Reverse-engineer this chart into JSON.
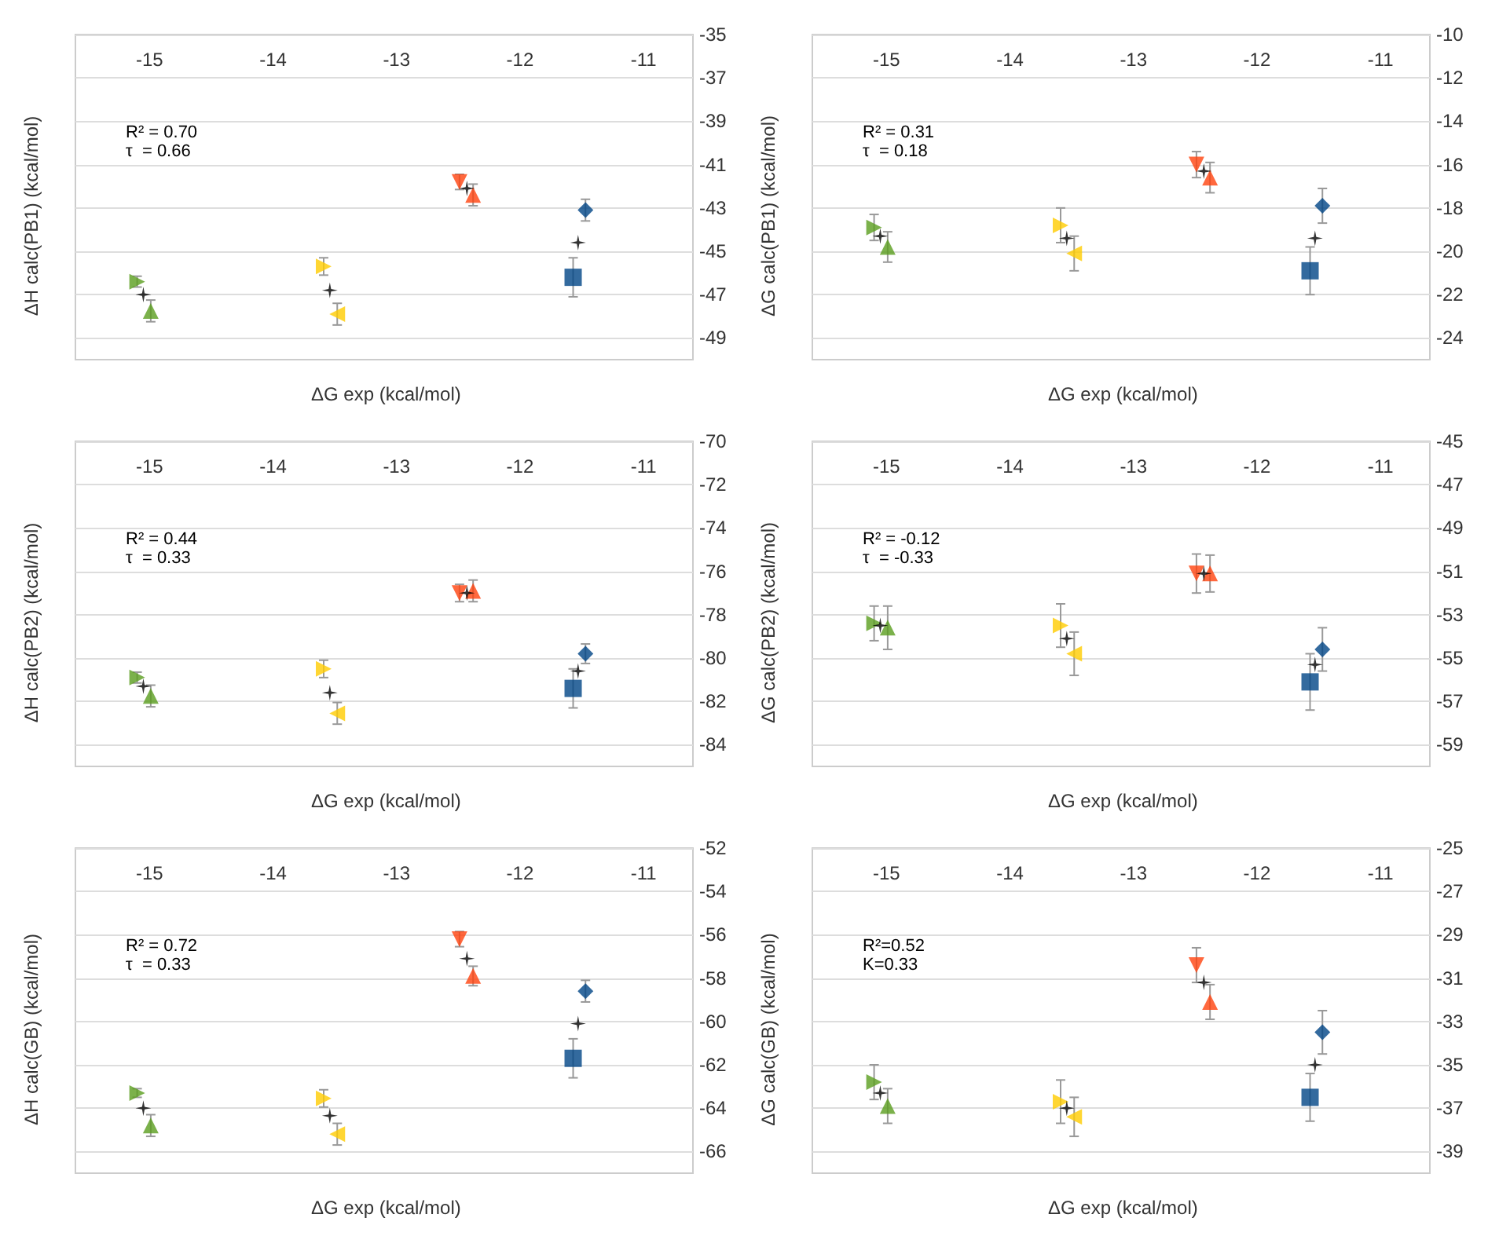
{
  "chart_data": [
    {
      "type": "scatter",
      "ylabel": "ΔH calc(PB1) (kcal/mol)",
      "xlabel": "ΔG exp (kcal/mol)",
      "xlim": [
        -15.6,
        -10.6
      ],
      "xticks": [
        -15,
        -14,
        -13,
        -12,
        -11
      ],
      "ylim": [
        -50,
        -35
      ],
      "yticks": [
        -35,
        -37,
        -39,
        -41,
        -43,
        -45,
        -47,
        -49
      ],
      "grid": "y",
      "annotations": [
        "R² = 0.70",
        "τ  = 0.66"
      ],
      "series": [
        {
          "x": [
            -15.1
          ],
          "values": [
            -46.4
          ],
          "errors": [
            0.25
          ],
          "color": "#5a9e1e",
          "marker": "triangle-right"
        },
        {
          "x": [
            -14.99
          ],
          "values": [
            -47.75
          ],
          "errors": [
            0.5
          ],
          "color": "#5a9e1e",
          "marker": "triangle"
        },
        {
          "x": [
            -13.59
          ],
          "values": [
            -45.7
          ],
          "errors": [
            0.4
          ],
          "color": "#ffcc00",
          "marker": "triangle-right"
        },
        {
          "x": [
            -13.48
          ],
          "values": [
            -47.9
          ],
          "errors": [
            0.5
          ],
          "color": "#ffcc00",
          "marker": "triangle-left"
        },
        {
          "x": [
            -12.49
          ],
          "values": [
            -41.8
          ],
          "errors": [
            0.35
          ],
          "color": "#ff420e",
          "marker": "triangle-down"
        },
        {
          "x": [
            -12.38
          ],
          "values": [
            -42.4
          ],
          "errors": [
            0.5
          ],
          "color": "#ff420e",
          "marker": "triangle"
        },
        {
          "x": [
            -11.57
          ],
          "values": [
            -46.2
          ],
          "errors": [
            0.9
          ],
          "color": "#004586",
          "marker": "square"
        },
        {
          "x": [
            -11.47
          ],
          "values": [
            -43.1
          ],
          "errors": [
            0.5
          ],
          "color": "#004586",
          "marker": "diamond"
        },
        {
          "x": [
            -15.05,
            -13.54,
            -12.43,
            -11.53
          ],
          "values": [
            -47.0,
            -46.8,
            -42.1,
            -44.6
          ],
          "color": "#000000",
          "marker": "cross"
        }
      ]
    },
    {
      "type": "scatter",
      "ylabel": "ΔG calc(PB1) (kcal/mol)",
      "xlabel": "ΔG exp (kcal/mol)",
      "xlim": [
        -15.6,
        -10.6
      ],
      "xticks": [
        -15,
        -14,
        -13,
        -12,
        -11
      ],
      "ylim": [
        -25,
        -10
      ],
      "yticks": [
        -10,
        -12,
        -14,
        -16,
        -18,
        -20,
        -22,
        -24
      ],
      "grid": "y",
      "annotations": [
        "R² = 0.31",
        "τ  = 0.18"
      ],
      "series": [
        {
          "x": [
            -15.1
          ],
          "values": [
            -18.9
          ],
          "errors": [
            0.6
          ],
          "color": "#5a9e1e",
          "marker": "triangle-right"
        },
        {
          "x": [
            -14.99
          ],
          "values": [
            -19.8
          ],
          "errors": [
            0.7
          ],
          "color": "#5a9e1e",
          "marker": "triangle"
        },
        {
          "x": [
            -13.59
          ],
          "values": [
            -18.8
          ],
          "errors": [
            0.8
          ],
          "color": "#ffcc00",
          "marker": "triangle-right"
        },
        {
          "x": [
            -13.48
          ],
          "values": [
            -20.1
          ],
          "errors": [
            0.8
          ],
          "color": "#ffcc00",
          "marker": "triangle-left"
        },
        {
          "x": [
            -12.49
          ],
          "values": [
            -16.0
          ],
          "errors": [
            0.6
          ],
          "color": "#ff420e",
          "marker": "triangle-down"
        },
        {
          "x": [
            -12.38
          ],
          "values": [
            -16.6
          ],
          "errors": [
            0.7
          ],
          "color": "#ff420e",
          "marker": "triangle"
        },
        {
          "x": [
            -11.57
          ],
          "values": [
            -20.9
          ],
          "errors": [
            1.1
          ],
          "color": "#004586",
          "marker": "square"
        },
        {
          "x": [
            -11.47
          ],
          "values": [
            -17.9
          ],
          "errors": [
            0.8
          ],
          "color": "#004586",
          "marker": "diamond"
        },
        {
          "x": [
            -15.05,
            -13.54,
            -12.43,
            -11.53
          ],
          "values": [
            -19.3,
            -19.4,
            -16.3,
            -19.4
          ],
          "color": "#000000",
          "marker": "cross"
        }
      ]
    },
    {
      "type": "scatter",
      "ylabel": "ΔH calc(PB2) (kcal/mol)",
      "xlabel": "ΔG exp (kcal/mol)",
      "xlim": [
        -15.6,
        -10.6
      ],
      "xticks": [
        -15,
        -14,
        -13,
        -12,
        -11
      ],
      "ylim": [
        -85,
        -70
      ],
      "yticks": [
        -70,
        -72,
        -74,
        -76,
        -78,
        -80,
        -82,
        -84
      ],
      "grid": "y",
      "annotations": [
        "R² = 0.44",
        "τ  = 0.33"
      ],
      "series": [
        {
          "x": [
            -15.1
          ],
          "values": [
            -80.9
          ],
          "errors": [
            0.25
          ],
          "color": "#5a9e1e",
          "marker": "triangle-right"
        },
        {
          "x": [
            -14.99
          ],
          "values": [
            -81.75
          ],
          "errors": [
            0.5
          ],
          "color": "#5a9e1e",
          "marker": "triangle"
        },
        {
          "x": [
            -13.59
          ],
          "values": [
            -80.5
          ],
          "errors": [
            0.4
          ],
          "color": "#ffcc00",
          "marker": "triangle-right"
        },
        {
          "x": [
            -13.48
          ],
          "values": [
            -82.55
          ],
          "errors": [
            0.5
          ],
          "color": "#ffcc00",
          "marker": "triangle-left"
        },
        {
          "x": [
            -12.49
          ],
          "values": [
            -77.0
          ],
          "errors": [
            0.4
          ],
          "color": "#ff420e",
          "marker": "triangle-down"
        },
        {
          "x": [
            -12.38
          ],
          "values": [
            -76.9
          ],
          "errors": [
            0.5
          ],
          "color": "#ff420e",
          "marker": "triangle"
        },
        {
          "x": [
            -11.57
          ],
          "values": [
            -81.4
          ],
          "errors": [
            0.9
          ],
          "color": "#004586",
          "marker": "square"
        },
        {
          "x": [
            -11.47
          ],
          "values": [
            -79.8
          ],
          "errors": [
            0.45
          ],
          "color": "#004586",
          "marker": "diamond"
        },
        {
          "x": [
            -15.05,
            -13.54,
            -12.43,
            -11.53
          ],
          "values": [
            -81.3,
            -81.6,
            -77.0,
            -80.6
          ],
          "color": "#000000",
          "marker": "cross"
        }
      ]
    },
    {
      "type": "scatter",
      "ylabel": "ΔG calc(PB2) (kcal/mol)",
      "xlabel": "ΔG exp (kcal/mol)",
      "xlim": [
        -15.6,
        -10.6
      ],
      "xticks": [
        -15,
        -14,
        -13,
        -12,
        -11
      ],
      "ylim": [
        -60,
        -45
      ],
      "yticks": [
        -45,
        -47,
        -49,
        -51,
        -53,
        -55,
        -57,
        -59
      ],
      "grid": "y",
      "annotations": [
        "R² = -0.12",
        "τ  = -0.33"
      ],
      "series": [
        {
          "x": [
            -15.1
          ],
          "values": [
            -53.4
          ],
          "errors": [
            0.8
          ],
          "color": "#5a9e1e",
          "marker": "triangle-right"
        },
        {
          "x": [
            -14.99
          ],
          "values": [
            -53.6
          ],
          "errors": [
            1.0
          ],
          "color": "#5a9e1e",
          "marker": "triangle"
        },
        {
          "x": [
            -13.59
          ],
          "values": [
            -53.5
          ],
          "errors": [
            1.0
          ],
          "color": "#ffcc00",
          "marker": "triangle-right"
        },
        {
          "x": [
            -13.48
          ],
          "values": [
            -54.8
          ],
          "errors": [
            1.0
          ],
          "color": "#ffcc00",
          "marker": "triangle-left"
        },
        {
          "x": [
            -12.49
          ],
          "values": [
            -51.1
          ],
          "errors": [
            0.9
          ],
          "color": "#ff420e",
          "marker": "triangle-down"
        },
        {
          "x": [
            -12.38
          ],
          "values": [
            -51.1
          ],
          "errors": [
            0.85
          ],
          "color": "#ff420e",
          "marker": "triangle"
        },
        {
          "x": [
            -11.57
          ],
          "values": [
            -56.1
          ],
          "errors": [
            1.3
          ],
          "color": "#004586",
          "marker": "square"
        },
        {
          "x": [
            -11.47
          ],
          "values": [
            -54.6
          ],
          "errors": [
            1.0
          ],
          "color": "#004586",
          "marker": "diamond"
        },
        {
          "x": [
            -15.05,
            -13.54,
            -12.43,
            -11.53
          ],
          "values": [
            -53.5,
            -54.1,
            -51.1,
            -55.3
          ],
          "color": "#000000",
          "marker": "cross"
        }
      ]
    },
    {
      "type": "scatter",
      "ylabel": "ΔH calc(GB) (kcal/mol)",
      "xlabel": "ΔG exp (kcal/mol)",
      "xlim": [
        -15.6,
        -10.6
      ],
      "xticks": [
        -15,
        -14,
        -13,
        -12,
        -11
      ],
      "ylim": [
        -67,
        -52
      ],
      "yticks": [
        -52,
        -54,
        -56,
        -58,
        -60,
        -62,
        -64,
        -66
      ],
      "grid": "y",
      "annotations": [
        "R² = 0.72",
        "τ  = 0.33"
      ],
      "series": [
        {
          "x": [
            -15.1
          ],
          "values": [
            -63.3
          ],
          "errors": [
            0.2
          ],
          "color": "#5a9e1e",
          "marker": "triangle-right"
        },
        {
          "x": [
            -14.99
          ],
          "values": [
            -64.8
          ],
          "errors": [
            0.5
          ],
          "color": "#5a9e1e",
          "marker": "triangle"
        },
        {
          "x": [
            -13.59
          ],
          "values": [
            -63.55
          ],
          "errors": [
            0.4
          ],
          "color": "#ffcc00",
          "marker": "triangle-right"
        },
        {
          "x": [
            -13.48
          ],
          "values": [
            -65.2
          ],
          "errors": [
            0.5
          ],
          "color": "#ffcc00",
          "marker": "triangle-left"
        },
        {
          "x": [
            -12.49
          ],
          "values": [
            -56.2
          ],
          "errors": [
            0.35
          ],
          "color": "#ff420e",
          "marker": "triangle-down"
        },
        {
          "x": [
            -12.38
          ],
          "values": [
            -57.9
          ],
          "errors": [
            0.45
          ],
          "color": "#ff420e",
          "marker": "triangle"
        },
        {
          "x": [
            -11.57
          ],
          "values": [
            -61.7
          ],
          "errors": [
            0.9
          ],
          "color": "#004586",
          "marker": "square"
        },
        {
          "x": [
            -11.47
          ],
          "values": [
            -58.6
          ],
          "errors": [
            0.5
          ],
          "color": "#004586",
          "marker": "diamond"
        },
        {
          "x": [
            -15.05,
            -13.54,
            -12.43,
            -11.53
          ],
          "values": [
            -64.0,
            -64.35,
            -57.1,
            -60.1
          ],
          "color": "#000000",
          "marker": "cross"
        }
      ]
    },
    {
      "type": "scatter",
      "ylabel": "ΔG calc(GB) (kcal/mol)",
      "xlabel": "ΔG exp (kcal/mol)",
      "xlim": [
        -15.6,
        -10.6
      ],
      "xticks": [
        -15,
        -14,
        -13,
        -12,
        -11
      ],
      "ylim": [
        -40,
        -25
      ],
      "yticks": [
        -25,
        -27,
        -29,
        -31,
        -33,
        -35,
        -37,
        -39
      ],
      "grid": "y",
      "annotations": [
        "R²=0.52",
        "K=0.33"
      ],
      "series": [
        {
          "x": [
            -15.1
          ],
          "values": [
            -35.8
          ],
          "errors": [
            0.8
          ],
          "color": "#5a9e1e",
          "marker": "triangle-right"
        },
        {
          "x": [
            -14.99
          ],
          "values": [
            -36.9
          ],
          "errors": [
            0.8
          ],
          "color": "#5a9e1e",
          "marker": "triangle"
        },
        {
          "x": [
            -13.59
          ],
          "values": [
            -36.7
          ],
          "errors": [
            1.0
          ],
          "color": "#ffcc00",
          "marker": "triangle-right"
        },
        {
          "x": [
            -13.48
          ],
          "values": [
            -37.4
          ],
          "errors": [
            0.9
          ],
          "color": "#ffcc00",
          "marker": "triangle-left"
        },
        {
          "x": [
            -12.49
          ],
          "values": [
            -30.4
          ],
          "errors": [
            0.8
          ],
          "color": "#ff420e",
          "marker": "triangle-down"
        },
        {
          "x": [
            -12.38
          ],
          "values": [
            -32.1
          ],
          "errors": [
            0.8
          ],
          "color": "#ff420e",
          "marker": "triangle"
        },
        {
          "x": [
            -11.57
          ],
          "values": [
            -36.5
          ],
          "errors": [
            1.1
          ],
          "color": "#004586",
          "marker": "square"
        },
        {
          "x": [
            -11.47
          ],
          "values": [
            -33.5
          ],
          "errors": [
            1.0
          ],
          "color": "#004586",
          "marker": "diamond"
        },
        {
          "x": [
            -15.05,
            -13.54,
            -12.43,
            -11.53
          ],
          "values": [
            -36.3,
            -37.0,
            -31.2,
            -35.0
          ],
          "color": "#000000",
          "marker": "cross"
        }
      ]
    }
  ]
}
